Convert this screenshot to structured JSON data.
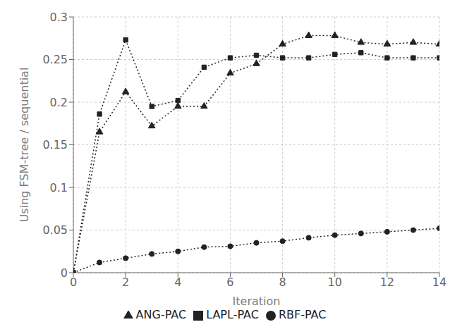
{
  "chart_data": {
    "type": "line",
    "x": [
      0,
      1,
      2,
      3,
      4,
      5,
      6,
      7,
      8,
      9,
      10,
      11,
      12,
      13,
      14
    ],
    "series": [
      {
        "name": "ANG-PAC",
        "color": "#222222",
        "marker": "triangle",
        "line_style": "dotted",
        "values": [
          0.0,
          0.165,
          0.212,
          0.172,
          0.195,
          0.195,
          0.234,
          0.245,
          0.268,
          0.278,
          0.278,
          0.27,
          0.268,
          0.27,
          0.268
        ]
      },
      {
        "name": "LAPL-PAC",
        "color": "#222222",
        "marker": "square",
        "line_style": "dotted",
        "values": [
          0.0,
          0.186,
          0.273,
          0.195,
          0.202,
          0.241,
          0.252,
          0.255,
          0.252,
          0.252,
          0.256,
          0.258,
          0.252,
          0.252,
          0.252
        ]
      },
      {
        "name": "RBF-PAC",
        "color": "#222222",
        "marker": "circle",
        "line_style": "dotted",
        "values": [
          0.0,
          0.012,
          0.017,
          0.022,
          0.025,
          0.03,
          0.031,
          0.035,
          0.037,
          0.041,
          0.044,
          0.046,
          0.048,
          0.05,
          0.052
        ]
      }
    ],
    "xlabel": "Iteration",
    "ylabel": "Using FSM-tree / sequential",
    "xlim": [
      0,
      14
    ],
    "ylim": [
      0,
      0.3
    ],
    "xticks": [
      0,
      2,
      4,
      6,
      8,
      10,
      12,
      14
    ],
    "yticks": [
      0,
      0.05,
      0.1,
      0.15,
      0.2,
      0.25,
      0.3
    ],
    "grid": true,
    "legend": "bottom"
  }
}
